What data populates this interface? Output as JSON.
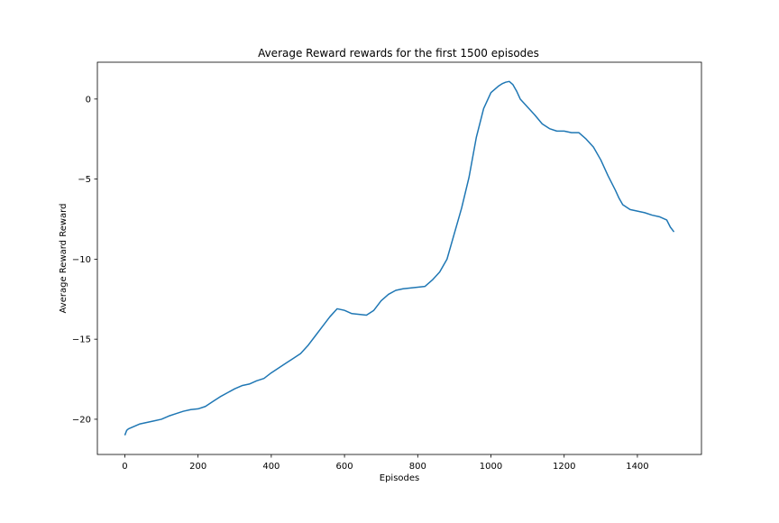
{
  "chart_data": {
    "type": "line",
    "title": "Average Reward rewards for the first 1500 episodes",
    "xlabel": "Episodes",
    "ylabel": "Average Reward Reward",
    "xlim": [
      -75,
      1575
    ],
    "ylim": [
      -22.2,
      2.3
    ],
    "xticks": [
      0,
      200,
      400,
      600,
      800,
      1000,
      1200,
      1400
    ],
    "yticks": [
      -20,
      -15,
      -10,
      -5,
      0
    ],
    "ytick_labels": [
      "−20",
      "−15",
      "−10",
      "−5",
      "0"
    ],
    "grid": false,
    "legend": "none",
    "series": [
      {
        "color": "#1f77b4",
        "x": [
          0,
          5,
          10,
          20,
          30,
          40,
          50,
          60,
          80,
          100,
          120,
          140,
          160,
          180,
          200,
          220,
          240,
          260,
          280,
          300,
          320,
          340,
          360,
          380,
          400,
          420,
          440,
          460,
          480,
          500,
          520,
          540,
          560,
          580,
          600,
          620,
          640,
          660,
          680,
          700,
          720,
          740,
          760,
          780,
          800,
          820,
          840,
          860,
          880,
          900,
          920,
          940,
          960,
          980,
          1000,
          1010,
          1020,
          1030,
          1040,
          1050,
          1060,
          1070,
          1080,
          1100,
          1120,
          1140,
          1160,
          1180,
          1200,
          1220,
          1240,
          1260,
          1280,
          1300,
          1320,
          1340,
          1350,
          1360,
          1380,
          1400,
          1420,
          1440,
          1460,
          1480,
          1490,
          1500
        ],
        "y": [
          -21.0,
          -20.7,
          -20.6,
          -20.5,
          -20.4,
          -20.3,
          -20.25,
          -20.2,
          -20.1,
          -20.0,
          -19.8,
          -19.65,
          -19.5,
          -19.4,
          -19.35,
          -19.2,
          -18.9,
          -18.6,
          -18.35,
          -18.1,
          -17.9,
          -17.8,
          -17.6,
          -17.45,
          -17.1,
          -16.8,
          -16.5,
          -16.2,
          -15.9,
          -15.4,
          -14.8,
          -14.2,
          -13.6,
          -13.1,
          -13.2,
          -13.4,
          -13.45,
          -13.5,
          -13.2,
          -12.6,
          -12.2,
          -11.95,
          -11.85,
          -11.8,
          -11.75,
          -11.7,
          -11.3,
          -10.8,
          -10.0,
          -8.4,
          -6.8,
          -4.9,
          -2.4,
          -0.6,
          0.4,
          0.6,
          0.8,
          0.95,
          1.05,
          1.1,
          0.9,
          0.5,
          0.0,
          -0.5,
          -1.0,
          -1.55,
          -1.85,
          -2.0,
          -2.0,
          -2.1,
          -2.1,
          -2.5,
          -3.0,
          -3.8,
          -4.8,
          -5.7,
          -6.2,
          -6.6,
          -6.9,
          -7.0,
          -7.1,
          -7.25,
          -7.35,
          -7.55,
          -8.0,
          -8.3
        ]
      }
    ]
  }
}
